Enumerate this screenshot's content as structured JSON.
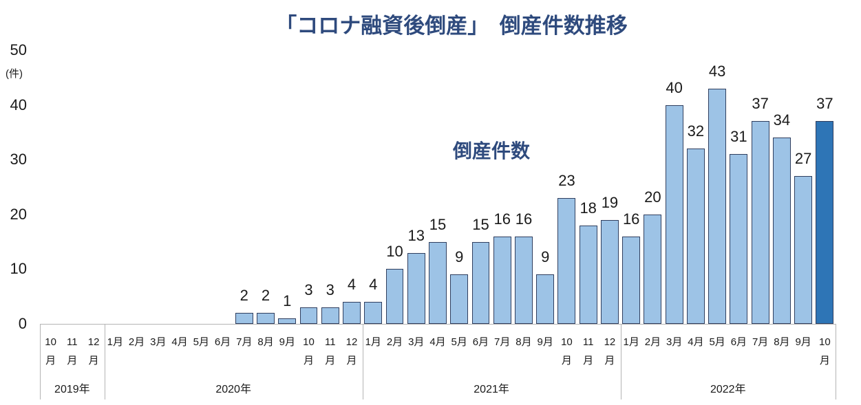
{
  "chart_data": {
    "type": "bar",
    "title": "「コロナ融資後倒産」　倒産件数推移",
    "series_name": "倒産件数",
    "ylabel": "(件)",
    "ylim": [
      0,
      50
    ],
    "yticks": [
      0,
      10,
      20,
      30,
      40,
      50
    ],
    "grid": false,
    "groups": [
      {
        "label": "2019年",
        "months": [
          {
            "label": "10月",
            "value": 0
          },
          {
            "label": "11月",
            "value": 0
          },
          {
            "label": "12月",
            "value": 0
          }
        ]
      },
      {
        "label": "2020年",
        "months": [
          {
            "label": "1月",
            "value": 0
          },
          {
            "label": "2月",
            "value": 0
          },
          {
            "label": "3月",
            "value": 0
          },
          {
            "label": "4月",
            "value": 0
          },
          {
            "label": "5月",
            "value": 0
          },
          {
            "label": "6月",
            "value": 0
          },
          {
            "label": "7月",
            "value": 2
          },
          {
            "label": "8月",
            "value": 2
          },
          {
            "label": "9月",
            "value": 1
          },
          {
            "label": "10月",
            "value": 3
          },
          {
            "label": "11月",
            "value": 3
          },
          {
            "label": "12月",
            "value": 4
          }
        ]
      },
      {
        "label": "2021年",
        "months": [
          {
            "label": "1月",
            "value": 4
          },
          {
            "label": "2月",
            "value": 10
          },
          {
            "label": "3月",
            "value": 13
          },
          {
            "label": "4月",
            "value": 15
          },
          {
            "label": "5月",
            "value": 9
          },
          {
            "label": "6月",
            "value": 15
          },
          {
            "label": "7月",
            "value": 16
          },
          {
            "label": "8月",
            "value": 16
          },
          {
            "label": "9月",
            "value": 9
          },
          {
            "label": "10月",
            "value": 23
          },
          {
            "label": "11月",
            "value": 18
          },
          {
            "label": "12月",
            "value": 19
          }
        ]
      },
      {
        "label": "2022年",
        "months": [
          {
            "label": "1月",
            "value": 16
          },
          {
            "label": "2月",
            "value": 20
          },
          {
            "label": "3月",
            "value": 40
          },
          {
            "label": "4月",
            "value": 32
          },
          {
            "label": "5月",
            "value": 43
          },
          {
            "label": "6月",
            "value": 31
          },
          {
            "label": "7月",
            "value": 37
          },
          {
            "label": "8月",
            "value": 34
          },
          {
            "label": "9月",
            "value": 27
          },
          {
            "label": "10月",
            "value": 37,
            "highlight": true
          }
        ]
      }
    ]
  },
  "colors": {
    "title": "#2E4A7D",
    "series_label": "#2E4A7D",
    "bar": "#9DC3E6",
    "bar_highlight": "#2E75B6",
    "bar_outline": "#2F3E5E",
    "axis": "#B4B4B4",
    "text": "#1A1A1A"
  }
}
